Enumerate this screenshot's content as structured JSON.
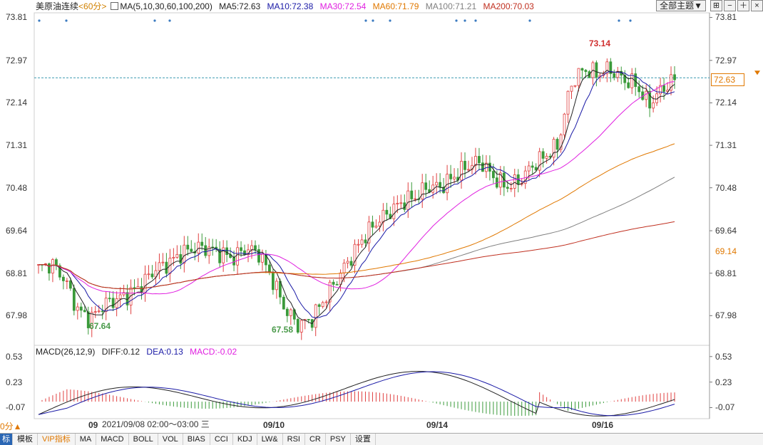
{
  "header": {
    "symbol": "美原油连续",
    "period": "<60分>",
    "ma_params": "MA(5,10,30,60,100,200)",
    "ma5": "MA5:72.63",
    "ma10": "MA10:72.38",
    "ma30": "MA30:72.54",
    "ma60": "MA60:71.79",
    "ma100": "MA100:71.21",
    "ma200": "MA200:70.03",
    "colors": {
      "ma5": "#222222",
      "ma10": "#1a1aa6",
      "ma30": "#e020e0",
      "ma60": "#e07800",
      "ma100": "#808080",
      "ma200": "#c03020"
    }
  },
  "toolbar": {
    "theme_select": "全部主题▼",
    "icons": [
      "grid-icon",
      "minus-icon",
      "plus-icon",
      "close-icon"
    ]
  },
  "price_axis": {
    "ticks": [
      "73.81",
      "72.97",
      "72.14",
      "71.31",
      "70.48",
      "69.64",
      "68.81",
      "67.98"
    ],
    "current_price": "72.63",
    "marker_price": "69.14"
  },
  "annotations": {
    "high": "73.14",
    "low1": "67.64",
    "low2": "67.58"
  },
  "macd": {
    "params": "MACD(26,12,9)",
    "diff": "DIFF:0.12",
    "dea": "DEA:0.13",
    "macd": "MACD:-0.02",
    "ticks": [
      "0.53",
      "0.23",
      "-0.07"
    ]
  },
  "x_axis": {
    "dates": [
      "09/10",
      "09/14",
      "09/16"
    ],
    "partial_left": "09",
    "cursor_time": "2021/09/08 02:00～03:00 三",
    "left_period_label": "0分▲"
  },
  "tabs": [
    "标",
    "模板",
    "VIP指标",
    "MA",
    "MACD",
    "BOLL",
    "VOL",
    "BIAS",
    "CCI",
    "KDJ",
    "LW&",
    "RSI",
    "CR",
    "PSY",
    "设置"
  ],
  "chart_data": {
    "type": "line",
    "title": "美原油连续",
    "ylim": [
      67.4,
      73.9
    ],
    "series_approx": {
      "close": [
        68.9,
        69.0,
        68.7,
        68.1,
        67.9,
        68.2,
        68.3,
        68.4,
        68.6,
        68.9,
        69.0,
        69.2,
        69.3,
        69.3,
        69.2,
        69.1,
        69.3,
        69.2,
        68.7,
        68.1,
        67.8,
        67.9,
        68.3,
        68.7,
        69.1,
        69.5,
        69.8,
        70.0,
        70.2,
        70.3,
        70.5,
        70.5,
        70.7,
        70.9,
        71.0,
        70.7,
        70.5,
        70.6,
        70.9,
        71.1,
        71.3,
        72.5,
        72.8,
        72.7,
        72.8,
        72.6,
        72.5,
        72.1,
        72.4,
        72.6
      ]
    },
    "ma_lines": [
      "MA5",
      "MA10",
      "MA30",
      "MA60",
      "MA100",
      "MA200"
    ]
  }
}
